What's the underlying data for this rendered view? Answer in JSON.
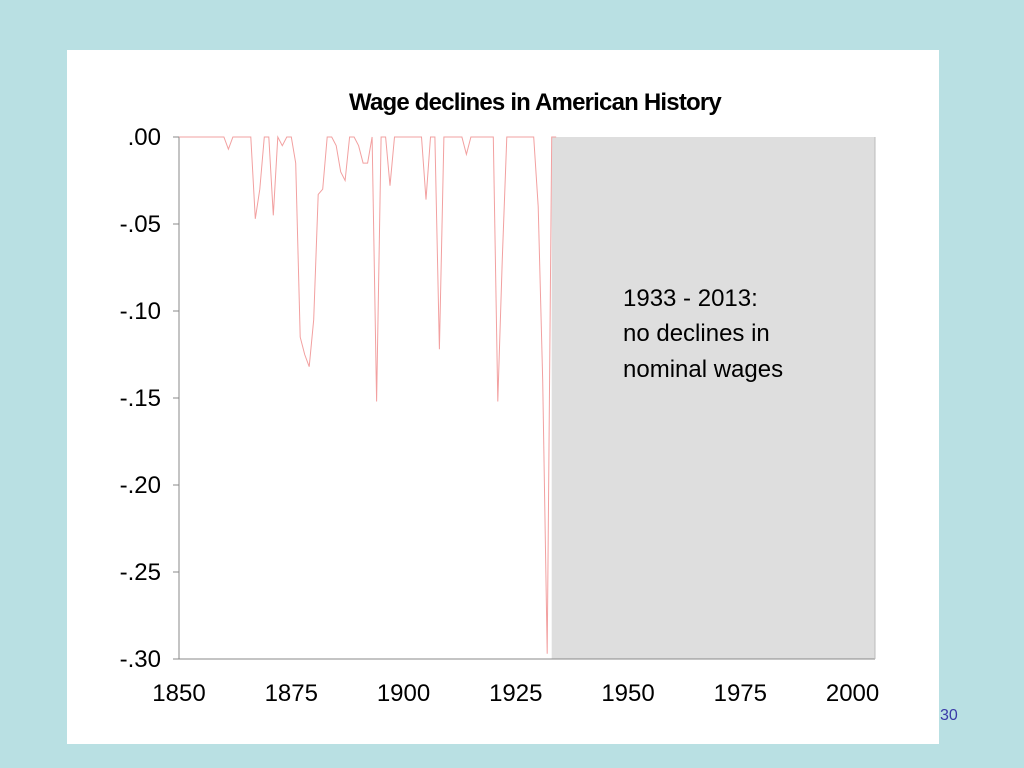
{
  "slide": {
    "page_number": "30"
  },
  "chart_data": {
    "type": "line",
    "title": "Wage declines in American History",
    "xlabel": "",
    "ylabel": "",
    "xlim": [
      1850,
      2005
    ],
    "ylim": [
      -0.3,
      0.0
    ],
    "x_ticks": [
      1850,
      1875,
      1900,
      1925,
      1950,
      1975,
      2000
    ],
    "x_tick_labels": [
      "1850",
      "1875",
      "1900",
      "1925",
      "1950",
      "1975",
      "2000"
    ],
    "y_ticks": [
      0.0,
      -0.05,
      -0.1,
      -0.15,
      -0.2,
      -0.25,
      -0.3
    ],
    "y_tick_labels": [
      ".00",
      "-.05",
      "-.10",
      "-.15",
      "-.20",
      "-.25",
      "-.30"
    ],
    "grid": false,
    "line_color": "#f2a0a0",
    "shaded_region": {
      "x_start": 1933,
      "x_end": 2005,
      "color": "#dedede"
    },
    "annotation": [
      "1933 - 2013:",
      "no declines in",
      "nominal wages"
    ],
    "series": [
      {
        "x": [
          1850,
          1860,
          1861,
          1862,
          1866,
          1867,
          1868,
          1869,
          1870,
          1871,
          1872,
          1873,
          1874,
          1875,
          1876,
          1877,
          1878,
          1879,
          1880,
          1881,
          1882,
          1883,
          1884,
          1885,
          1886,
          1887,
          1888,
          1889,
          1890,
          1891,
          1892,
          1893,
          1894,
          1895,
          1896,
          1897,
          1898,
          1899,
          1904,
          1905,
          1906,
          1907,
          1908,
          1909,
          1913,
          1914,
          1915,
          1920,
          1921,
          1922,
          1923,
          1924,
          1929,
          1930,
          1931,
          1932,
          1933,
          1934
        ],
        "values": [
          0.0,
          0.0,
          -0.007,
          0.0,
          0.0,
          -0.047,
          -0.03,
          0.0,
          0.0,
          -0.045,
          0.0,
          -0.005,
          0.0,
          0.0,
          -0.015,
          -0.115,
          -0.125,
          -0.132,
          -0.105,
          -0.033,
          -0.03,
          0.0,
          0.0,
          -0.005,
          -0.02,
          -0.025,
          0.0,
          0.0,
          -0.005,
          -0.015,
          -0.015,
          0.0,
          -0.152,
          0.0,
          0.0,
          -0.028,
          0.0,
          0.0,
          0.0,
          -0.036,
          0.0,
          0.0,
          -0.122,
          0.0,
          0.0,
          -0.01,
          0.0,
          0.0,
          -0.152,
          -0.07,
          0.0,
          0.0,
          0.0,
          -0.04,
          -0.14,
          -0.297,
          0.0,
          0.0
        ]
      }
    ]
  }
}
